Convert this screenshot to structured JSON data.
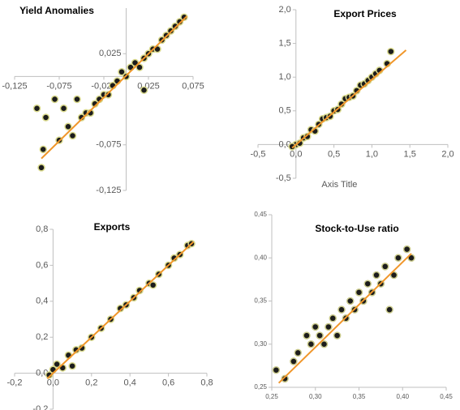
{
  "chart_data": [
    {
      "type": "scatter",
      "title": "Yield Anomalies",
      "color": "#1c1c1c",
      "halo": "#d9d98c",
      "xlim": [
        -0.125,
        0.075
      ],
      "ylim": [
        -0.125,
        0.075
      ],
      "xticks": [
        {
          "value": -0.125,
          "label": "-0,125"
        },
        {
          "value": -0.075,
          "label": "-0,075"
        },
        {
          "value": -0.025,
          "label": "-0,025"
        },
        {
          "value": 0.025,
          "label": "0,025"
        },
        {
          "value": 0.075,
          "label": "0,075"
        }
      ],
      "yticks": [
        {
          "value": -0.125,
          "label": "-0,125"
        },
        {
          "value": -0.075,
          "label": "-0,075"
        },
        {
          "value": 0.025,
          "label": "0,025"
        }
      ],
      "x": [
        -0.095,
        -0.093,
        -0.09,
        -0.075,
        -0.07,
        -0.065,
        -0.06,
        -0.055,
        -0.05,
        -0.045,
        -0.04,
        -0.035,
        -0.03,
        -0.025,
        -0.02,
        -0.015,
        -0.01,
        -0.005,
        0,
        0.005,
        0.01,
        0.015,
        0.02,
        0.02,
        0.025,
        0.03,
        0.035,
        0.04,
        0.045,
        0.05,
        0.055,
        0.06,
        0.065,
        -0.08,
        -0.1
      ],
      "values": [
        -0.1,
        -0.08,
        -0.045,
        -0.07,
        -0.035,
        -0.055,
        -0.065,
        -0.025,
        -0.045,
        -0.04,
        -0.04,
        -0.03,
        -0.025,
        -0.02,
        -0.02,
        -0.01,
        -0.005,
        0.005,
        0,
        0.01,
        0.015,
        0.01,
        -0.015,
        0.02,
        0.025,
        0.03,
        0.03,
        0.04,
        0.045,
        0.05,
        0.055,
        0.06,
        0.065,
        -0.025,
        -0.035
      ],
      "trendline": {
        "color": "#f0962a",
        "x": [
          -0.095,
          0.068
        ],
        "values": [
          -0.09,
          0.066
        ]
      }
    },
    {
      "type": "scatter",
      "title": "Export Prices",
      "x_label": "Axis Title",
      "color": "#1c1c1c",
      "halo": "#d9d98c",
      "xlim": [
        -0.5,
        2.0
      ],
      "ylim": [
        -0.5,
        2.0
      ],
      "xticks": [
        {
          "value": -0.5,
          "label": "-0,5"
        },
        {
          "value": 0,
          "label": "0,0"
        },
        {
          "value": 0.5,
          "label": "0,5"
        },
        {
          "value": 1,
          "label": "1,0"
        },
        {
          "value": 1.5,
          "label": "1,5"
        },
        {
          "value": 2,
          "label": "2,0"
        }
      ],
      "yticks": [
        {
          "value": -0.5,
          "label": "-0,5"
        },
        {
          "value": 0,
          "label": "0,0"
        },
        {
          "value": 0.5,
          "label": "0,5"
        },
        {
          "value": 1,
          "label": "1,0"
        },
        {
          "value": 1.5,
          "label": "1,5"
        },
        {
          "value": 2,
          "label": "2,0"
        }
      ],
      "x": [
        0,
        0.05,
        0.1,
        0.15,
        0.2,
        0.25,
        0.3,
        0.35,
        0.4,
        0.45,
        0.5,
        0.55,
        0.6,
        0.65,
        0.7,
        0.75,
        0.8,
        0.85,
        0.9,
        0.95,
        1.0,
        1.05,
        1.1,
        1.2,
        1.25,
        -0.05
      ],
      "values": [
        0,
        0.02,
        0.1,
        0.12,
        0.22,
        0.2,
        0.3,
        0.38,
        0.4,
        0.42,
        0.5,
        0.52,
        0.6,
        0.68,
        0.7,
        0.72,
        0.8,
        0.88,
        0.9,
        0.95,
        1.0,
        1.05,
        1.1,
        1.2,
        1.38,
        -0.03
      ],
      "trendline": {
        "color": "#f0962a",
        "x": [
          -0.05,
          1.45
        ],
        "values": [
          -0.05,
          1.4
        ]
      }
    },
    {
      "type": "scatter",
      "title": "Exports",
      "color": "#1c1c1c",
      "halo": "#d9d98c",
      "xlim": [
        -0.2,
        0.8
      ],
      "ylim": [
        -0.2,
        0.8
      ],
      "xticks": [
        {
          "value": -0.2,
          "label": "-0,2"
        },
        {
          "value": 0,
          "label": "0,0"
        },
        {
          "value": 0.2,
          "label": "0,2"
        },
        {
          "value": 0.4,
          "label": "0,4"
        },
        {
          "value": 0.6,
          "label": "0,6"
        },
        {
          "value": 0.8,
          "label": "0,8"
        }
      ],
      "yticks": [
        {
          "value": -0.2,
          "label": "-0,2"
        },
        {
          "value": 0,
          "label": "0,0"
        },
        {
          "value": 0.2,
          "label": "0,2"
        },
        {
          "value": 0.4,
          "label": "0,4"
        },
        {
          "value": 0.6,
          "label": "0,6"
        },
        {
          "value": 0.8,
          "label": "0,8"
        }
      ],
      "x": [
        -0.02,
        0,
        0.02,
        0.05,
        0.08,
        0.1,
        0.12,
        0.15,
        0.2,
        0.25,
        0.3,
        0.35,
        0.38,
        0.42,
        0.45,
        0.5,
        0.55,
        0.6,
        0.63,
        0.66,
        0.7,
        0.72,
        0.52
      ],
      "values": [
        -0.01,
        0.02,
        0.05,
        0.03,
        0.1,
        0.04,
        0.13,
        0.14,
        0.2,
        0.25,
        0.3,
        0.36,
        0.38,
        0.42,
        0.46,
        0.5,
        0.55,
        0.6,
        0.64,
        0.66,
        0.71,
        0.72,
        0.49
      ],
      "trendline": {
        "color": "#f0962a",
        "x": [
          -0.03,
          0.73
        ],
        "values": [
          -0.03,
          0.73
        ]
      }
    },
    {
      "type": "scatter",
      "title": "Stock-to-Use ratio",
      "color": "#1c1c1c",
      "halo": "#c9c98a",
      "xlim": [
        0.25,
        0.45
      ],
      "ylim": [
        0.25,
        0.45
      ],
      "xticks": [
        {
          "value": 0.25,
          "label": "0,25"
        },
        {
          "value": 0.3,
          "label": "0,30"
        },
        {
          "value": 0.35,
          "label": "0,35"
        },
        {
          "value": 0.4,
          "label": "0,40"
        },
        {
          "value": 0.45,
          "label": "0,45"
        }
      ],
      "yticks": [
        {
          "value": 0.25,
          "label": "0,25"
        },
        {
          "value": 0.3,
          "label": "0,30"
        },
        {
          "value": 0.35,
          "label": "0,35"
        },
        {
          "value": 0.4,
          "label": "0,40"
        },
        {
          "value": 0.45,
          "label": "0,45"
        }
      ],
      "x": [
        0.255,
        0.265,
        0.275,
        0.28,
        0.29,
        0.295,
        0.3,
        0.305,
        0.31,
        0.315,
        0.32,
        0.325,
        0.33,
        0.335,
        0.34,
        0.345,
        0.35,
        0.355,
        0.36,
        0.365,
        0.37,
        0.375,
        0.38,
        0.385,
        0.39,
        0.395,
        0.405,
        0.41
      ],
      "values": [
        0.27,
        0.26,
        0.28,
        0.29,
        0.31,
        0.3,
        0.32,
        0.31,
        0.3,
        0.32,
        0.33,
        0.31,
        0.34,
        0.33,
        0.35,
        0.34,
        0.36,
        0.35,
        0.37,
        0.36,
        0.38,
        0.37,
        0.39,
        0.34,
        0.38,
        0.4,
        0.41,
        0.4
      ],
      "trendline": {
        "color": "#f0962a",
        "x": [
          0.258,
          0.41
        ],
        "values": [
          0.255,
          0.405
        ]
      }
    }
  ]
}
